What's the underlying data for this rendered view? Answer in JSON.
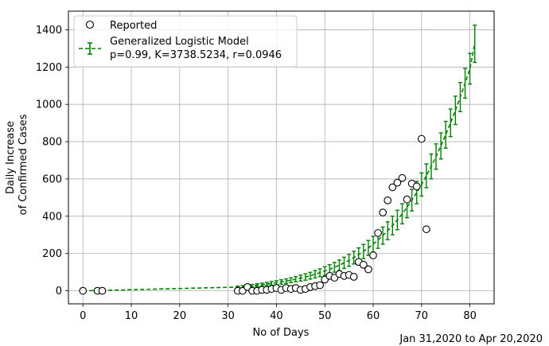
{
  "chart_data": {
    "type": "scatter",
    "xlabel": "No of Days",
    "ylabel": [
      "Daily Increase",
      "of Confirmed Cases"
    ],
    "xlim": [
      -3,
      85
    ],
    "ylim": [
      -70,
      1500
    ],
    "xticks": [
      0,
      10,
      20,
      30,
      40,
      50,
      60,
      70,
      80
    ],
    "yticks": [
      0,
      200,
      400,
      600,
      800,
      1000,
      1200,
      1400
    ],
    "grid": true,
    "legend_position": "top-left",
    "note": "Jan 31,2020 to Apr 20,2020",
    "series": [
      {
        "name": "Reported",
        "marker": "open-circle",
        "color": "#000000",
        "points": [
          [
            0,
            0
          ],
          [
            3,
            0
          ],
          [
            4,
            0
          ],
          [
            32,
            0
          ],
          [
            33,
            0
          ],
          [
            34,
            20
          ],
          [
            35,
            0
          ],
          [
            36,
            0
          ],
          [
            37,
            5
          ],
          [
            38,
            5
          ],
          [
            39,
            10
          ],
          [
            40,
            15
          ],
          [
            41,
            5
          ],
          [
            42,
            15
          ],
          [
            43,
            10
          ],
          [
            44,
            15
          ],
          [
            45,
            5
          ],
          [
            46,
            10
          ],
          [
            47,
            20
          ],
          [
            48,
            25
          ],
          [
            49,
            30
          ],
          [
            50,
            60
          ],
          [
            51,
            80
          ],
          [
            52,
            70
          ],
          [
            53,
            90
          ],
          [
            54,
            80
          ],
          [
            55,
            85
          ],
          [
            56,
            75
          ],
          [
            57,
            155
          ],
          [
            58,
            140
          ],
          [
            59,
            115
          ],
          [
            60,
            190
          ],
          [
            61,
            310
          ],
          [
            62,
            420
          ],
          [
            63,
            485
          ],
          [
            64,
            555
          ],
          [
            65,
            580
          ],
          [
            66,
            605
          ],
          [
            67,
            490
          ],
          [
            68,
            575
          ],
          [
            69,
            560
          ],
          [
            70,
            815
          ],
          [
            71,
            330
          ]
        ]
      },
      {
        "name": "Generalized Logistic Model",
        "params": "p=0.99, K=3738.5234, r=0.0946",
        "style": "dashed-errorbar",
        "color": "#008000",
        "points": [
          [
            0,
            0,
            0
          ],
          [
            4,
            2,
            0
          ],
          [
            32,
            20,
            5
          ],
          [
            33,
            22,
            6
          ],
          [
            34,
            24,
            6
          ],
          [
            35,
            27,
            7
          ],
          [
            36,
            30,
            8
          ],
          [
            37,
            33,
            8
          ],
          [
            38,
            36,
            9
          ],
          [
            39,
            40,
            10
          ],
          [
            40,
            43,
            11
          ],
          [
            41,
            47,
            12
          ],
          [
            42,
            52,
            12
          ],
          [
            43,
            57,
            13
          ],
          [
            44,
            62,
            14
          ],
          [
            45,
            68,
            16
          ],
          [
            46,
            74,
            17
          ],
          [
            47,
            81,
            18
          ],
          [
            48,
            89,
            20
          ],
          [
            49,
            97,
            21
          ],
          [
            50,
            106,
            23
          ],
          [
            51,
            115,
            25
          ],
          [
            52,
            126,
            26
          ],
          [
            53,
            137,
            28
          ],
          [
            54,
            150,
            30
          ],
          [
            55,
            163,
            32
          ],
          [
            56,
            178,
            34
          ],
          [
            57,
            194,
            36
          ],
          [
            58,
            211,
            38
          ],
          [
            59,
            230,
            40
          ],
          [
            60,
            250,
            42
          ],
          [
            61,
            272,
            44
          ],
          [
            62,
            296,
            46
          ],
          [
            63,
            322,
            48
          ],
          [
            64,
            350,
            50
          ],
          [
            65,
            380,
            52
          ],
          [
            66,
            413,
            54
          ],
          [
            67,
            448,
            56
          ],
          [
            68,
            486,
            58
          ],
          [
            69,
            527,
            60
          ],
          [
            70,
            570,
            62
          ],
          [
            71,
            617,
            64
          ],
          [
            72,
            667,
            66
          ],
          [
            73,
            720,
            68
          ],
          [
            74,
            777,
            70
          ],
          [
            75,
            837,
            72
          ],
          [
            76,
            901,
            74
          ],
          [
            77,
            968,
            76
          ],
          [
            78,
            1039,
            78
          ],
          [
            79,
            1113,
            80
          ],
          [
            80,
            1191,
            82
          ],
          [
            81,
            1325,
            100
          ]
        ]
      }
    ]
  }
}
